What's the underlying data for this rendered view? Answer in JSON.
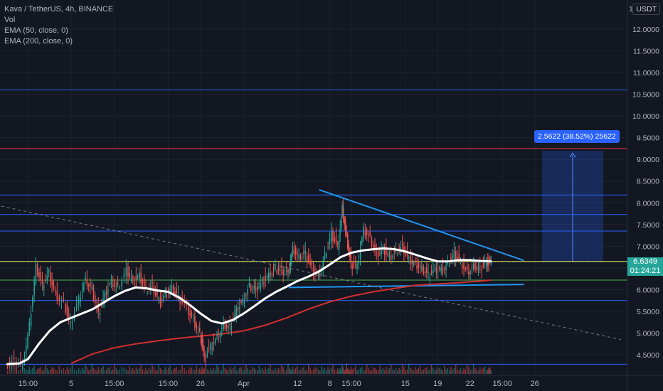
{
  "legend": {
    "title": "Kava / TetherUS, 4h, BINANCE",
    "vol": "Vol",
    "ema50": "EMA (50, close, 0)",
    "ema200": "EMA (200, close, 0)"
  },
  "currency": "USDT",
  "last_price": {
    "value": "6.6349",
    "countdown": "01:24:21"
  },
  "measure": {
    "text": "2.5622 (38.52%) 25622",
    "from": 6.6349,
    "to": 9.197
  },
  "colors": {
    "background": "#131722",
    "grid": "#1e222d",
    "up": "#26a69a",
    "down": "#ef5350",
    "ema50": "#ffffff",
    "ema200": "#d32f2f",
    "hline": "#2962ff",
    "trendline": "#2196f3",
    "yellow_line": "#f5e34a",
    "green_line": "#4caf50",
    "red_line": "#f23645",
    "axis_text": "#b2b5be"
  },
  "chart_data": {
    "type": "candlestick",
    "title": "Kava / TetherUS, 4h, BINANCE",
    "y_axis": {
      "min": 4.1,
      "max": 13.0,
      "ticks": [
        "12.0000",
        "11.5000",
        "11.0000",
        "10.5000",
        "10.0000",
        "9.5000",
        "9.0000",
        "8.5000",
        "8.0000",
        "7.5000",
        "7.0000",
        "6.5000",
        "6.0000",
        "5.5000",
        "5.0000",
        "4.5000"
      ],
      "top_tick": "1"
    },
    "x_axis": {
      "ticks": [
        "8",
        "15:00",
        "15",
        "15:00",
        "22",
        "26",
        "Apr",
        "5",
        "15:00",
        "12",
        "15:00",
        "19",
        "15:00",
        "26"
      ]
    },
    "horizontal_lines": [
      {
        "price": 10.6,
        "color": "hline"
      },
      {
        "price": 9.25,
        "color": "red_line"
      },
      {
        "price": 8.18,
        "color": "hline"
      },
      {
        "price": 7.73,
        "color": "hline"
      },
      {
        "price": 7.35,
        "color": "hline"
      },
      {
        "price": 6.65,
        "color": "yellow_line"
      },
      {
        "price": 6.22,
        "color": "green_line"
      },
      {
        "price": 5.75,
        "color": "hline"
      },
      {
        "price": 4.28,
        "color": "hline"
      }
    ],
    "trendlines": [
      {
        "p1": [
          5.5,
          8.3
        ],
        "p2": [
          15.0,
          6.67
        ],
        "style": "solid"
      },
      {
        "p1": [
          4.1,
          6.05
        ],
        "p2": [
          15.0,
          6.12
        ],
        "style": "solid"
      },
      {
        "p1": [
          -9.5,
          7.95
        ],
        "p2": [
          19.5,
          4.85
        ],
        "style": "dashed"
      }
    ],
    "x_positions": {
      "8": -8.0,
      "15:00a": -6.0,
      "15": -4.0,
      "15:00b": -1.5,
      "22": 0.0,
      "26": 2.0,
      "Apr": 4.5,
      "5": 6.0,
      "15:00c": 7.0,
      "12": 9.5,
      "15:00d": 11.0,
      "19": 12.5,
      "15:00e": 14.0,
      "26b": 15.5
    },
    "keypoints": [
      [
        -9.0,
        4.3
      ],
      [
        -8.6,
        4.35
      ],
      [
        -8.2,
        4.3
      ],
      [
        -7.9,
        5.2
      ],
      [
        -7.6,
        6.55
      ],
      [
        -7.3,
        6.1
      ],
      [
        -7.0,
        6.4
      ],
      [
        -6.7,
        5.9
      ],
      [
        -6.3,
        5.7
      ],
      [
        -6.0,
        5.2
      ],
      [
        -5.6,
        5.8
      ],
      [
        -5.3,
        6.25
      ],
      [
        -5.0,
        6.0
      ],
      [
        -4.7,
        5.45
      ],
      [
        -4.4,
        5.9
      ],
      [
        -4.1,
        6.2
      ],
      [
        -3.8,
        6.05
      ],
      [
        -3.4,
        6.45
      ],
      [
        -3.1,
        6.2
      ],
      [
        -2.8,
        6.35
      ],
      [
        -2.5,
        6.0
      ],
      [
        -2.2,
        6.1
      ],
      [
        -1.9,
        5.75
      ],
      [
        -1.6,
        5.9
      ],
      [
        -1.3,
        6.05
      ],
      [
        -1.0,
        5.85
      ],
      [
        -0.6,
        5.6
      ],
      [
        -0.3,
        5.3
      ],
      [
        0.0,
        5.0
      ],
      [
        0.2,
        4.45
      ],
      [
        0.5,
        4.7
      ],
      [
        0.8,
        4.9
      ],
      [
        1.1,
        5.2
      ],
      [
        1.4,
        5.15
      ],
      [
        1.7,
        5.55
      ],
      [
        2.0,
        5.75
      ],
      [
        2.3,
        6.1
      ],
      [
        2.6,
        6.0
      ],
      [
        2.9,
        6.2
      ],
      [
        3.2,
        6.35
      ],
      [
        3.5,
        6.5
      ],
      [
        3.8,
        6.45
      ],
      [
        4.1,
        6.4
      ],
      [
        4.3,
        6.95
      ],
      [
        4.6,
        6.75
      ],
      [
        4.9,
        6.85
      ],
      [
        5.2,
        6.5
      ],
      [
        5.5,
        6.3
      ],
      [
        5.8,
        6.8
      ],
      [
        6.1,
        7.3
      ],
      [
        6.4,
        7.0
      ],
      [
        6.6,
        7.9
      ],
      [
        6.8,
        7.2
      ],
      [
        7.0,
        6.6
      ],
      [
        7.3,
        6.55
      ],
      [
        7.6,
        7.4
      ],
      [
        7.9,
        7.2
      ],
      [
        8.2,
        6.8
      ],
      [
        8.5,
        6.95
      ],
      [
        8.8,
        6.75
      ],
      [
        9.1,
        6.9
      ],
      [
        9.4,
        7.0
      ],
      [
        9.7,
        6.7
      ],
      [
        10.0,
        6.6
      ],
      [
        10.3,
        6.5
      ],
      [
        10.6,
        6.35
      ],
      [
        10.9,
        6.5
      ],
      [
        11.2,
        6.45
      ],
      [
        11.5,
        6.6
      ],
      [
        11.8,
        6.85
      ],
      [
        12.1,
        6.65
      ],
      [
        12.4,
        6.4
      ],
      [
        12.7,
        6.55
      ],
      [
        13.0,
        6.5
      ],
      [
        13.3,
        6.65
      ],
      [
        13.5,
        6.63
      ]
    ],
    "ema50": [
      [
        -9.0,
        4.28
      ],
      [
        -8.4,
        4.3
      ],
      [
        -8.0,
        4.4
      ],
      [
        -7.5,
        4.75
      ],
      [
        -7.0,
        5.05
      ],
      [
        -6.5,
        5.25
      ],
      [
        -6.0,
        5.35
      ],
      [
        -5.5,
        5.45
      ],
      [
        -5.0,
        5.55
      ],
      [
        -4.5,
        5.7
      ],
      [
        -4.0,
        5.85
      ],
      [
        -3.5,
        5.97
      ],
      [
        -3.0,
        6.05
      ],
      [
        -2.5,
        6.03
      ],
      [
        -2.0,
        5.98
      ],
      [
        -1.5,
        5.95
      ],
      [
        -1.0,
        5.82
      ],
      [
        -0.5,
        5.65
      ],
      [
        0.0,
        5.45
      ],
      [
        0.5,
        5.28
      ],
      [
        1.0,
        5.22
      ],
      [
        1.5,
        5.3
      ],
      [
        2.0,
        5.45
      ],
      [
        2.5,
        5.62
      ],
      [
        3.0,
        5.8
      ],
      [
        3.5,
        5.95
      ],
      [
        4.0,
        6.07
      ],
      [
        4.5,
        6.2
      ],
      [
        5.0,
        6.3
      ],
      [
        5.5,
        6.42
      ],
      [
        6.0,
        6.58
      ],
      [
        6.5,
        6.75
      ],
      [
        7.0,
        6.85
      ],
      [
        7.5,
        6.9
      ],
      [
        8.0,
        6.93
      ],
      [
        8.5,
        6.95
      ],
      [
        9.0,
        6.93
      ],
      [
        9.5,
        6.88
      ],
      [
        10.0,
        6.8
      ],
      [
        10.5,
        6.72
      ],
      [
        11.0,
        6.65
      ],
      [
        11.5,
        6.65
      ],
      [
        12.0,
        6.68
      ],
      [
        12.5,
        6.68
      ],
      [
        13.0,
        6.66
      ],
      [
        13.5,
        6.65
      ]
    ],
    "ema200": [
      [
        -6.0,
        4.3
      ],
      [
        -5.0,
        4.52
      ],
      [
        -4.0,
        4.66
      ],
      [
        -3.0,
        4.75
      ],
      [
        -2.0,
        4.82
      ],
      [
        -1.0,
        4.88
      ],
      [
        0.0,
        4.93
      ],
      [
        1.0,
        4.98
      ],
      [
        2.0,
        5.05
      ],
      [
        3.0,
        5.18
      ],
      [
        4.0,
        5.35
      ],
      [
        5.0,
        5.55
      ],
      [
        6.0,
        5.72
      ],
      [
        7.0,
        5.85
      ],
      [
        8.0,
        5.95
      ],
      [
        9.0,
        6.03
      ],
      [
        10.0,
        6.1
      ],
      [
        11.0,
        6.13
      ],
      [
        12.0,
        6.16
      ],
      [
        13.0,
        6.2
      ],
      [
        13.5,
        6.22
      ]
    ],
    "x_range": [
      -9.3,
      19.8
    ]
  }
}
